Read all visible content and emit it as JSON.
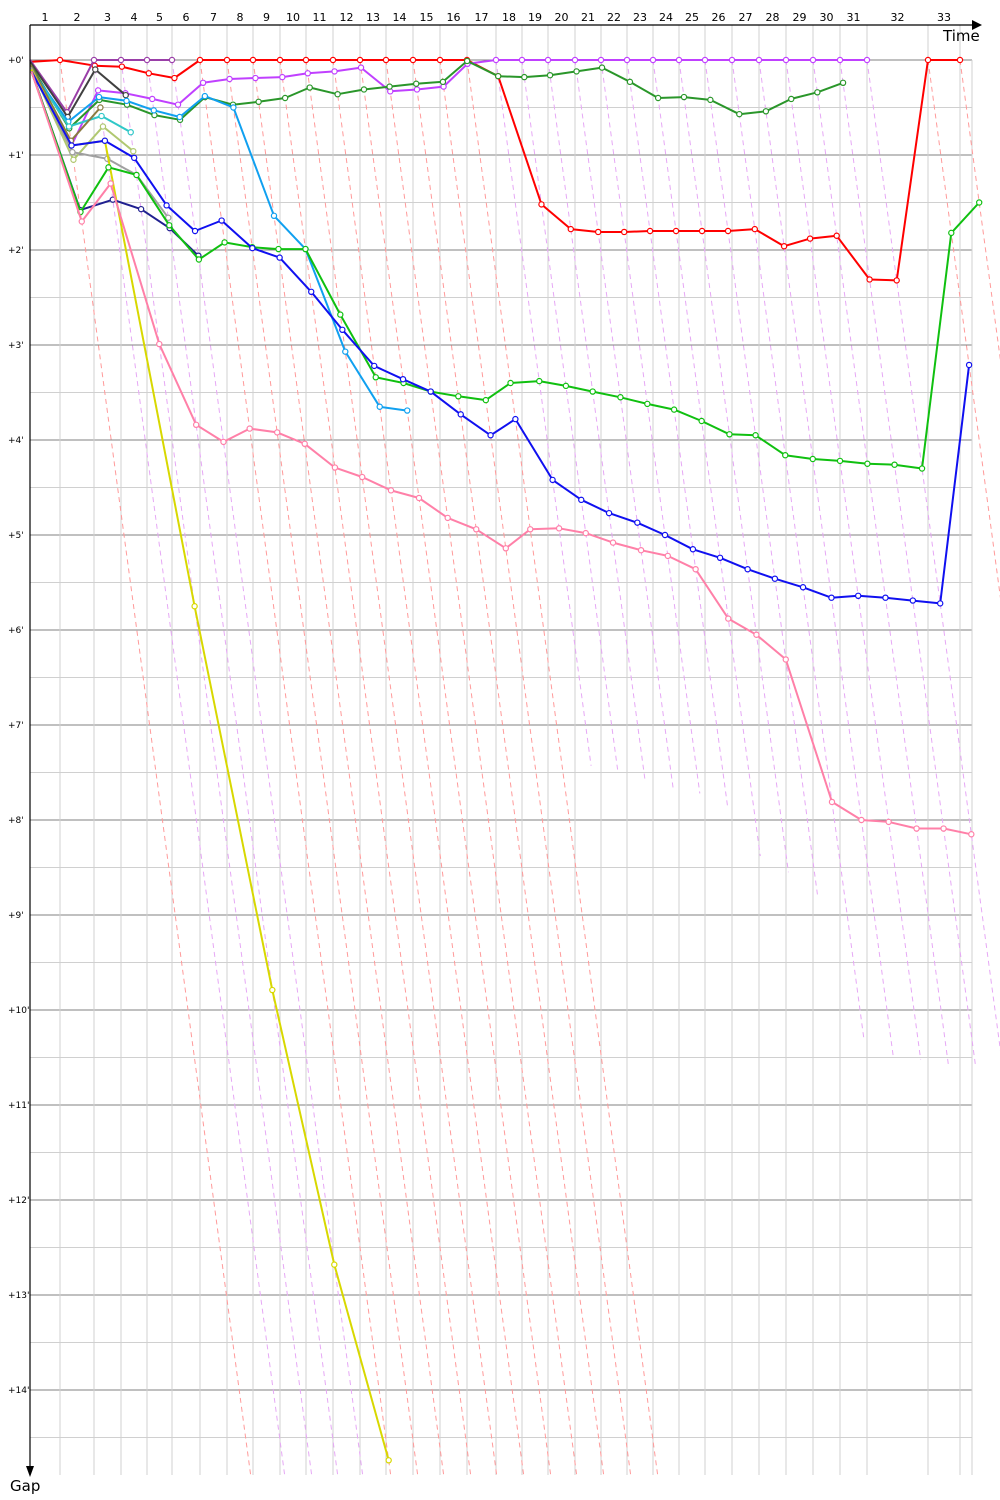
{
  "chart_data": {
    "type": "line",
    "title": "",
    "xlabel": "Time",
    "ylabel": "Gap",
    "x_tick_labels": [
      "1",
      "2",
      "3",
      "4",
      "5",
      "6",
      "7",
      "8",
      "9",
      "10",
      "11",
      "12",
      "13",
      "14",
      "15",
      "16",
      "17",
      "18",
      "19",
      "20",
      "21",
      "22",
      "23",
      "24",
      "25",
      "26",
      "27",
      "28",
      "29",
      "30",
      "31",
      "32",
      "33"
    ],
    "y_tick_labels": [
      "+0'",
      "+1'",
      "+2'",
      "+3'",
      "+4'",
      "+5'",
      "+6'",
      "+7'",
      "+8'",
      "+9'",
      "+10'",
      "+11'",
      "+12'",
      "+13'",
      "+14'"
    ],
    "y_unit": "minutes",
    "ylim": [
      0,
      14.9
    ],
    "grid": true,
    "lap_leader_colors": [
      "#ff9a9a",
      "#ff9a9a",
      "#e6a8f5",
      "#e6a8f5",
      "#e6a8f5",
      "#e6a8f5",
      "#ff9a9a",
      "#ff9a9a",
      "#ff9a9a",
      "#ff9a9a",
      "#ff9a9a",
      "#ff9a9a",
      "#ff9a9a",
      "#ff9a9a",
      "#ff9a9a",
      "#ff9a9a",
      "#ff9a9a",
      "#e6a8f5",
      "#e6a8f5",
      "#e6a8f5",
      "#e6a8f5",
      "#e6a8f5",
      "#e6a8f5",
      "#e6a8f5",
      "#e6a8f5",
      "#e6a8f5",
      "#e6a8f5",
      "#e6a8f5",
      "#e6a8f5",
      "#e6a8f5",
      "#e6a8f5",
      "#e6a8f5",
      "#ff9a9a",
      "#ff9a9a"
    ],
    "series": [
      {
        "color": "#ff0000",
        "points": [
          [
            0,
            0.02
          ],
          [
            1,
            0
          ],
          [
            2,
            0.06
          ],
          [
            3,
            0.07
          ],
          [
            4,
            0.14
          ],
          [
            5,
            0.19
          ],
          [
            6,
            0
          ],
          [
            7,
            0
          ],
          [
            8,
            0
          ],
          [
            9,
            0
          ],
          [
            10,
            0
          ],
          [
            11,
            0
          ],
          [
            12,
            0
          ],
          [
            13,
            0
          ],
          [
            14,
            0
          ],
          [
            15,
            0
          ],
          [
            16,
            0
          ],
          [
            17,
            0.17
          ],
          [
            18,
            1.52
          ],
          [
            19,
            1.78
          ],
          [
            20,
            1.81
          ],
          [
            21,
            1.81
          ],
          [
            22,
            1.8
          ],
          [
            23,
            1.8
          ],
          [
            24,
            1.8
          ],
          [
            25,
            1.8
          ],
          [
            26,
            1.78
          ],
          [
            27,
            1.96
          ],
          [
            28,
            1.88
          ],
          [
            29,
            1.85
          ],
          [
            30,
            2.31
          ],
          [
            31,
            2.32
          ],
          [
            32,
            0
          ],
          [
            33,
            0
          ]
        ]
      },
      {
        "color": "#9a3fa8",
        "points": [
          [
            0,
            0
          ],
          [
            1,
            0.55
          ],
          [
            2,
            0
          ],
          [
            3,
            0
          ],
          [
            4,
            0
          ],
          [
            5,
            0
          ]
        ]
      },
      {
        "color": "#c040ff",
        "points": [
          [
            0,
            0.05
          ],
          [
            1,
            0.9
          ],
          [
            2,
            0.32
          ],
          [
            3,
            0.35
          ],
          [
            4,
            0.41
          ],
          [
            5,
            0.47
          ],
          [
            6,
            0.24
          ],
          [
            7,
            0.2
          ],
          [
            8,
            0.19
          ],
          [
            9,
            0.18
          ],
          [
            10,
            0.14
          ],
          [
            11,
            0.12
          ],
          [
            12,
            0.08
          ],
          [
            13,
            0.33
          ],
          [
            14,
            0.31
          ],
          [
            15,
            0.28
          ],
          [
            16,
            0.04
          ],
          [
            17,
            0
          ],
          [
            18,
            0
          ],
          [
            19,
            0
          ],
          [
            20,
            0
          ],
          [
            21,
            0
          ],
          [
            22,
            0
          ],
          [
            23,
            0
          ],
          [
            24,
            0
          ],
          [
            25,
            0
          ],
          [
            26,
            0
          ],
          [
            27,
            0
          ],
          [
            28,
            0
          ],
          [
            29,
            0
          ],
          [
            30,
            0
          ],
          [
            31,
            0
          ]
        ]
      },
      {
        "color": "#404040",
        "points": [
          [
            0,
            0.02
          ],
          [
            1,
            0.6
          ],
          [
            2,
            0.1
          ],
          [
            3,
            0.37
          ]
        ]
      },
      {
        "color": "#2a962a",
        "points": [
          [
            0,
            0.05
          ],
          [
            1,
            0.72
          ],
          [
            2,
            0.42
          ],
          [
            3,
            0.47
          ],
          [
            4,
            0.58
          ],
          [
            5,
            0.63
          ],
          [
            6,
            0.39
          ],
          [
            7,
            0.47
          ],
          [
            8,
            0.44
          ],
          [
            9,
            0.4
          ],
          [
            10,
            0.29
          ],
          [
            11,
            0.36
          ],
          [
            12,
            0.31
          ],
          [
            13,
            0.28
          ],
          [
            14,
            0.25
          ],
          [
            15,
            0.23
          ],
          [
            16,
            0.01
          ],
          [
            17,
            0.17
          ],
          [
            18,
            0.18
          ],
          [
            19,
            0.16
          ],
          [
            20,
            0.12
          ],
          [
            21,
            0.08
          ],
          [
            22,
            0.23
          ],
          [
            23,
            0.4
          ],
          [
            24,
            0.39
          ],
          [
            25,
            0.42
          ],
          [
            26,
            0.57
          ],
          [
            27,
            0.54
          ],
          [
            28,
            0.41
          ],
          [
            29,
            0.34
          ],
          [
            30,
            0.24
          ]
        ]
      },
      {
        "color": "#10a0f0",
        "points": [
          [
            0,
            0.1
          ],
          [
            1,
            0.65
          ],
          [
            2,
            0.39
          ],
          [
            3,
            0.43
          ],
          [
            4,
            0.53
          ],
          [
            5,
            0.6
          ],
          [
            6,
            0.38
          ],
          [
            7,
            0.5
          ],
          [
            8,
            1.64
          ],
          [
            9,
            1.99
          ],
          [
            10,
            3.07
          ],
          [
            11,
            3.65
          ],
          [
            12,
            3.69
          ]
        ]
      },
      {
        "color": "#30c8c8",
        "points": [
          [
            0,
            0.1
          ],
          [
            1,
            0.7
          ],
          [
            2,
            0.59
          ],
          [
            3,
            0.76
          ]
        ]
      },
      {
        "color": "#8a7a40",
        "points": [
          [
            0,
            0.05
          ],
          [
            1,
            0.85
          ],
          [
            2,
            0.5
          ]
        ]
      },
      {
        "color": "#b0c870",
        "points": [
          [
            0,
            0.08
          ],
          [
            1,
            1.05
          ],
          [
            2,
            0.7
          ],
          [
            3,
            0.96
          ]
        ]
      },
      {
        "color": "#a0a0a0",
        "points": [
          [
            0,
            0.08
          ],
          [
            1,
            0.97
          ],
          [
            2,
            1.04
          ],
          [
            3,
            1.21
          ],
          [
            4,
            1.66
          ]
        ]
      },
      {
        "color": "#d8d800",
        "points": [
          [
            0,
            0.1
          ],
          [
            1,
            0.9
          ],
          [
            2,
            0.85
          ],
          [
            3,
            5.75
          ],
          [
            4,
            9.79
          ],
          [
            5,
            12.68
          ],
          [
            6,
            14.74
          ]
        ]
      },
      {
        "color": "#202090",
        "points": [
          [
            0,
            0.12
          ],
          [
            1,
            1.58
          ],
          [
            2,
            1.47
          ],
          [
            3,
            1.57
          ],
          [
            4,
            1.77
          ],
          [
            5,
            2.06
          ]
        ]
      },
      {
        "color": "#10c010",
        "points": [
          [
            0,
            0.12
          ],
          [
            1,
            1.6
          ],
          [
            2,
            1.13
          ],
          [
            3,
            1.21
          ],
          [
            4,
            1.74
          ],
          [
            5,
            2.1
          ],
          [
            6,
            1.92
          ],
          [
            7,
            1.97
          ],
          [
            8,
            1.99
          ],
          [
            9,
            1.99
          ],
          [
            10,
            2.68
          ],
          [
            11,
            3.34
          ],
          [
            12,
            3.4
          ],
          [
            13,
            3.49
          ],
          [
            14,
            3.54
          ],
          [
            15,
            3.58
          ],
          [
            16,
            3.4
          ],
          [
            17,
            3.38
          ],
          [
            18,
            3.43
          ],
          [
            19,
            3.49
          ],
          [
            20,
            3.55
          ],
          [
            21,
            3.62
          ],
          [
            22,
            3.68
          ],
          [
            23,
            3.8
          ],
          [
            24,
            3.94
          ],
          [
            25,
            3.95
          ],
          [
            26,
            4.16
          ],
          [
            27,
            4.2
          ],
          [
            28,
            4.22
          ],
          [
            29,
            4.25
          ],
          [
            30,
            4.26
          ],
          [
            31,
            4.3
          ],
          [
            32,
            1.82
          ],
          [
            33,
            1.5
          ]
        ]
      },
      {
        "color": "#1010f0",
        "points": [
          [
            0,
            0.12
          ],
          [
            1,
            0.9
          ],
          [
            2,
            0.85
          ],
          [
            3,
            1.03
          ],
          [
            4,
            1.53
          ],
          [
            5,
            1.8
          ],
          [
            6,
            1.69
          ],
          [
            7,
            1.98
          ],
          [
            8,
            2.08
          ],
          [
            9,
            2.44
          ],
          [
            10,
            2.84
          ],
          [
            11,
            3.22
          ],
          [
            12,
            3.36
          ],
          [
            13,
            3.49
          ],
          [
            14,
            3.73
          ],
          [
            15,
            3.95
          ],
          [
            16,
            3.78
          ],
          [
            17,
            4.42
          ],
          [
            18,
            4.63
          ],
          [
            19,
            4.77
          ],
          [
            20,
            4.87
          ],
          [
            21,
            5.0
          ],
          [
            22,
            5.15
          ],
          [
            23,
            5.24
          ],
          [
            24,
            5.36
          ],
          [
            25,
            5.46
          ],
          [
            26,
            5.55
          ],
          [
            27,
            5.66
          ],
          [
            28,
            5.64
          ],
          [
            29,
            5.66
          ],
          [
            30,
            5.69
          ],
          [
            31,
            5.72
          ],
          [
            32,
            3.21
          ]
        ]
      },
      {
        "color": "#ff80a8",
        "points": [
          [
            0,
            0.12
          ],
          [
            1,
            1.7
          ],
          [
            2,
            1.3
          ],
          [
            3,
            2.99
          ],
          [
            4,
            3.84
          ],
          [
            5,
            4.02
          ],
          [
            6,
            3.88
          ],
          [
            7,
            3.92
          ],
          [
            8,
            4.04
          ],
          [
            9,
            4.29
          ],
          [
            10,
            4.39
          ],
          [
            11,
            4.53
          ],
          [
            12,
            4.61
          ],
          [
            13,
            4.82
          ],
          [
            14,
            4.94
          ],
          [
            15,
            5.14
          ],
          [
            16,
            4.94
          ],
          [
            17,
            4.93
          ],
          [
            18,
            4.98
          ],
          [
            19,
            5.08
          ],
          [
            20,
            5.16
          ],
          [
            21,
            5.22
          ],
          [
            22,
            5.36
          ],
          [
            23,
            5.88
          ],
          [
            24,
            6.05
          ],
          [
            25,
            6.31
          ],
          [
            26,
            7.81
          ],
          [
            27,
            8.0
          ],
          [
            28,
            8.02
          ],
          [
            29,
            8.09
          ],
          [
            30,
            8.09
          ],
          [
            31,
            8.15
          ]
        ]
      }
    ]
  }
}
